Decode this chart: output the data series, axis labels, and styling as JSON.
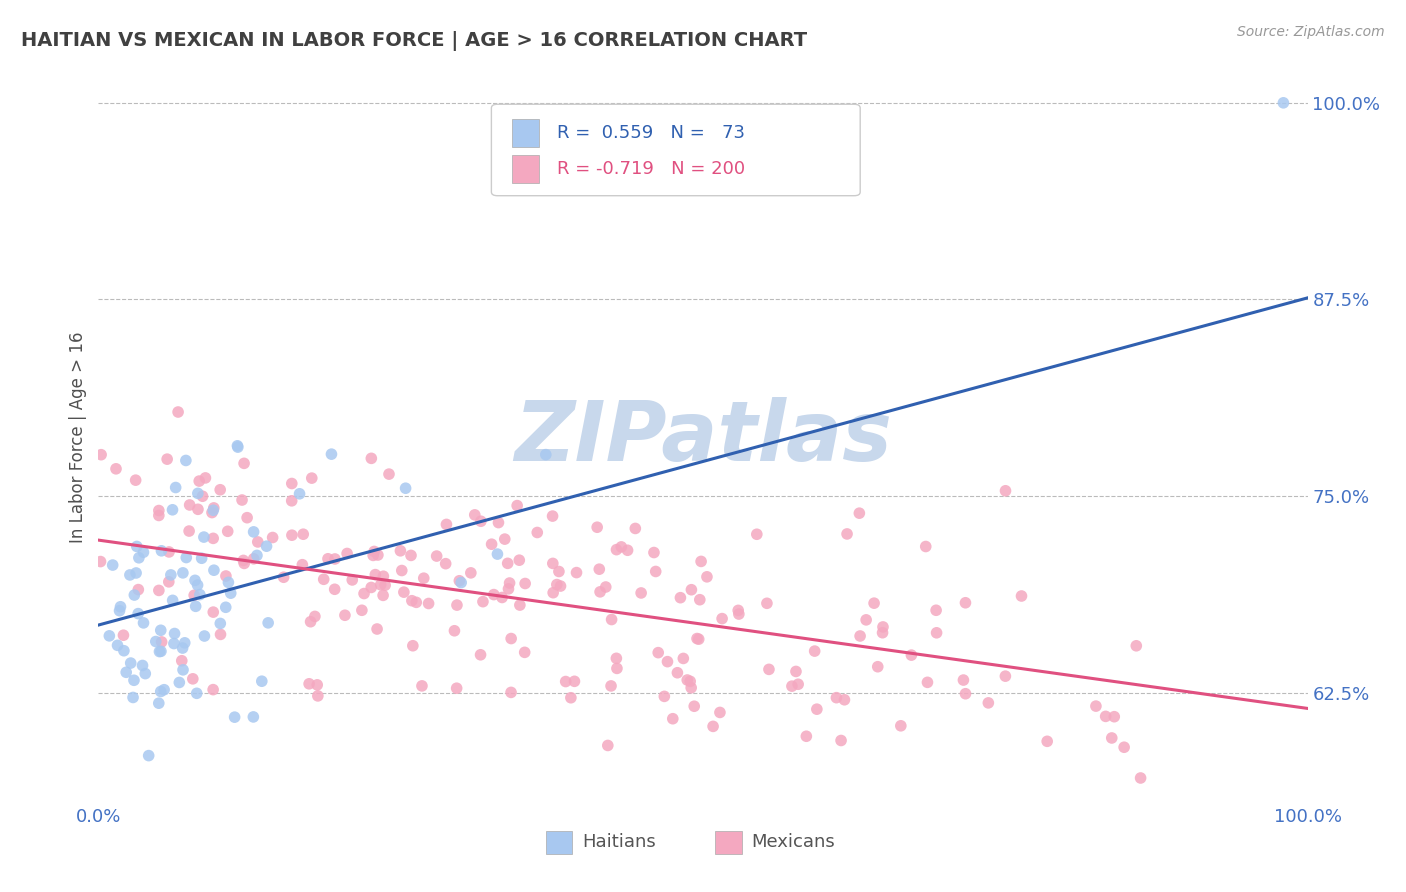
{
  "title": "HAITIAN VS MEXICAN IN LABOR FORCE | AGE > 16 CORRELATION CHART",
  "source": "Source: ZipAtlas.com",
  "ylabel": "In Labor Force | Age > 16",
  "xlim": [
    0.0,
    1.0
  ],
  "ylim": [
    0.555,
    1.02
  ],
  "ytick_positions": [
    0.625,
    0.75,
    0.875,
    1.0
  ],
  "ytick_labels": [
    "62.5%",
    "75.0%",
    "87.5%",
    "100.0%"
  ],
  "blue_R": 0.559,
  "blue_N": 73,
  "pink_R": -0.719,
  "pink_N": 200,
  "blue_color": "#A8C8F0",
  "pink_color": "#F4A8C0",
  "blue_line_color": "#3060B0",
  "pink_line_color": "#E05080",
  "watermark": "ZIPatlas",
  "watermark_color": "#C8D8EC",
  "legend_label_blue": "Haitians",
  "legend_label_pink": "Mexicans",
  "background_color": "#FFFFFF",
  "grid_color": "#BBBBBB",
  "title_color": "#404040",
  "axis_label_color": "#505050",
  "tick_label_color": "#4472C4",
  "blue_line_start_y": 0.668,
  "blue_line_end_y": 0.876,
  "pink_line_start_y": 0.722,
  "pink_line_end_y": 0.615,
  "seed": 42
}
